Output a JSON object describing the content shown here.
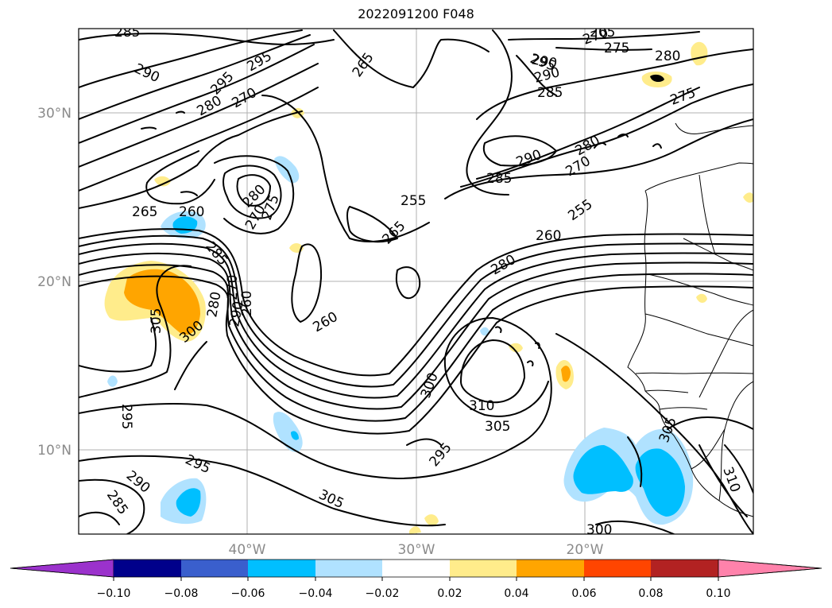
{
  "title": "2022091200 F048",
  "map": {
    "lat_labels": [
      "30°N",
      "20°N",
      "10°N"
    ],
    "lon_labels": [
      "40°W",
      "30°W",
      "20°W"
    ],
    "contour_labels": [
      "285",
      "290",
      "295",
      "295",
      "280",
      "270",
      "265",
      "255",
      "265",
      "260",
      "265",
      "260",
      "280",
      "270",
      "275",
      "285",
      "270",
      "260",
      "290",
      "280",
      "305",
      "300",
      "290",
      "295",
      "290",
      "285",
      "270",
      "265",
      "275",
      "280",
      "290",
      "285",
      "280",
      "270",
      "255",
      "275",
      "260",
      "280",
      "300",
      "310",
      "305",
      "295",
      "295",
      "290",
      "285",
      "305",
      "300",
      "305",
      "310",
      "295"
    ]
  },
  "colorbar": {
    "ticks": [
      "−0.10",
      "−0.08",
      "−0.06",
      "−0.04",
      "−0.02",
      "0.02",
      "0.04",
      "0.06",
      "0.08",
      "0.10"
    ],
    "colors": {
      "under": "#9b32cc",
      "b1": "#00008b",
      "b2": "#3a5fcd",
      "b3": "#00bfff",
      "b4": "#b0e2ff",
      "b5": "#ffffff",
      "b6": "#ffec8b",
      "b7": "#ffa500",
      "b8": "#ff4500",
      "b9": "#b22222",
      "over": "#ff82ab"
    }
  }
}
